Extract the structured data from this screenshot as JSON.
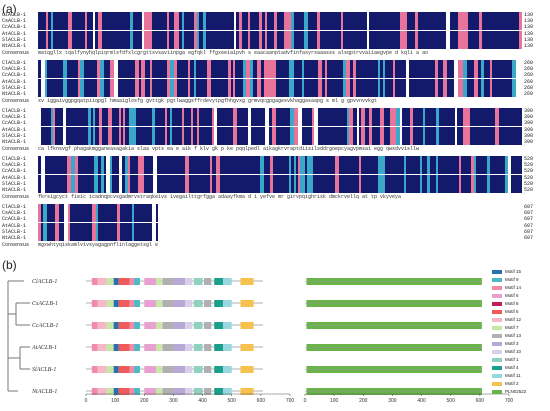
{
  "panels": {
    "a": "(a)",
    "b": "(b)"
  },
  "alignment": {
    "species": [
      "ClACLB-1",
      "CsACLB-1",
      "CcACLB-1",
      "AtACLB-1",
      "SlACLB-1",
      "NtACLB-1"
    ],
    "consensus_label": "Consensus",
    "blocks": [
      {
        "end_numbers": [
          "130",
          "130",
          "130",
          "130",
          "130",
          "130"
        ],
        "consensus": "matqgllx  tqalfynyhqlpiqrmlsfdfxlcgrgttsvsaviinpga egfqkl ffgxeeiaipvh s eaacaanptadvfinfasyrsaaasss  alsqptrvvaiiaegvpe d kqli a ao"
      },
      {
        "end_numbers": [
          "260",
          "260",
          "260",
          "260",
          "260",
          "260"
        ],
        "consensus": "xv iggaivggpgqatpiiqpgl hmaaiglosfg   gvttgk  pgtlwaggsffrdevytpgfhhgvxg grmvqcgpgagesvkhaggasaapg s ml  g gpvvnvvkgt"
      },
      {
        "end_numbers": [
          "390",
          "390",
          "390",
          "390",
          "390",
          "390"
        ],
        "consensus": "ca lfknsvgf phagakmgganeasagakia  slaa  vpts ea e aik  f klv gk  p ke  pqqlpedl  aikagkrvraptdiisilsddrgoepcyagvpmsai  egg  qwsdvvisllw"
      },
      {
        "end_numbers": [
          "520",
          "520",
          "520",
          "520",
          "520",
          "520"
        ],
        "consensus": "fkrsigcyct fieic   icadnqpcvsgadmrvstraqkeivs ivegailttgrfgga  adaayfkma d i   yefve mr  girvpqighrisk  dmckrvellq  at  tp vkyveya"
      },
      {
        "end_numbers": [
          "607",
          "607",
          "607",
          "607",
          "607",
          "607"
        ],
        "consensus": "mgxwhtyqiskamlvivsyagagpnflinlaggetsgl  einl  igylnqgjgigmtpqkvlkglyrhpewevwhesgf"
      }
    ]
  },
  "motif_plot": {
    "genes": [
      "ClACLB-1",
      "CsACLB-1",
      "CcACLB-1",
      "AtACLB-1",
      "SlACLB-1",
      "NtACLB-1"
    ],
    "x_ticks": [
      "0",
      "100",
      "200",
      "300",
      "400",
      "500",
      "600",
      "700"
    ],
    "x_max": 700,
    "protein_length": 607,
    "legend": [
      {
        "label": "Motif 15",
        "color": "#2b6fb0"
      },
      {
        "label": "Motif 9",
        "color": "#4fb8c7"
      },
      {
        "label": "Motif 14",
        "color": "#f28aa8"
      },
      {
        "label": "Motif 6",
        "color": "#e8a0d0"
      },
      {
        "label": "Motif 8",
        "color": "#c21d54"
      },
      {
        "label": "Motif 5",
        "color": "#f05a5a"
      },
      {
        "label": "Motif 12",
        "color": "#f6b8c8"
      },
      {
        "label": "Motif 7",
        "color": "#c8e6a8"
      },
      {
        "label": "Motif 13",
        "color": "#b0b0b0"
      },
      {
        "label": "Motif 3",
        "color": "#b7a8d6"
      },
      {
        "label": "Motif 10",
        "color": "#d8d0e8"
      },
      {
        "label": "Motif 1",
        "color": "#8fd0c0"
      },
      {
        "label": "Motif 4",
        "color": "#1b9e8a"
      },
      {
        "label": "Motif 11",
        "color": "#98d8e0"
      },
      {
        "label": "Motif 2",
        "color": "#f6c14f"
      },
      {
        "label": "PLN02522",
        "color": "#6ab34a"
      }
    ],
    "motif_order": [
      {
        "motif": "Motif 14",
        "start": 20,
        "end": 40
      },
      {
        "motif": "Motif 12",
        "start": 40,
        "end": 70
      },
      {
        "motif": "Motif 7",
        "start": 70,
        "end": 95
      },
      {
        "motif": "Motif 15",
        "start": 95,
        "end": 112
      },
      {
        "motif": "Motif 5",
        "start": 112,
        "end": 150
      },
      {
        "motif": "Motif 14",
        "start": 150,
        "end": 165
      },
      {
        "motif": "Motif 9",
        "start": 165,
        "end": 185
      },
      {
        "motif": "Motif 6",
        "start": 200,
        "end": 240
      },
      {
        "motif": "Motif 7",
        "start": 240,
        "end": 260
      },
      {
        "motif": "Motif 13",
        "start": 262,
        "end": 300
      },
      {
        "motif": "Motif 3",
        "start": 300,
        "end": 340
      },
      {
        "motif": "Motif 10",
        "start": 340,
        "end": 365
      },
      {
        "motif": "Motif 1",
        "start": 370,
        "end": 400
      },
      {
        "motif": "Motif 13",
        "start": 405,
        "end": 430
      },
      {
        "motif": "Motif 4",
        "start": 440,
        "end": 470
      },
      {
        "motif": "Motif 11",
        "start": 470,
        "end": 500
      },
      {
        "motif": "Motif 2",
        "start": 530,
        "end": 575
      }
    ]
  }
}
